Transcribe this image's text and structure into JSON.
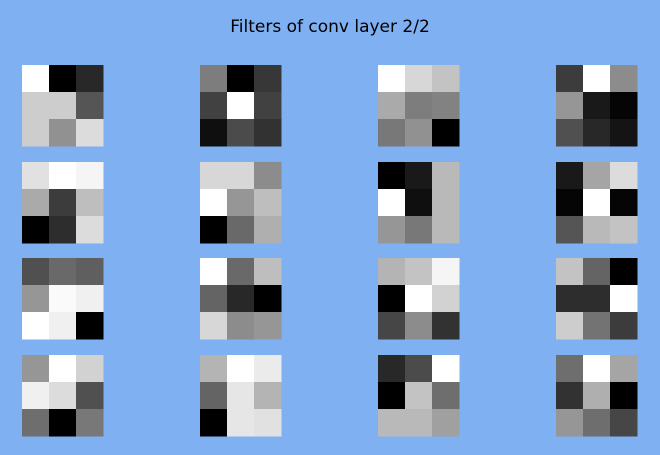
{
  "figure": {
    "background": "#7eb0f2"
  },
  "chart_data": {
    "type": "heatmap",
    "title": "Filters of conv layer 2/2",
    "colormap": "gray",
    "value_range": [
      0,
      255
    ],
    "rows": 4,
    "cols": 4,
    "filters": [
      [
        [
          255,
          0,
          40
        ],
        [
          205,
          205,
          85
        ],
        [
          205,
          145,
          220
        ]
      ],
      [
        [
          125,
          0,
          55
        ],
        [
          65,
          255,
          65
        ],
        [
          15,
          75,
          50
        ]
      ],
      [
        [
          255,
          215,
          195
        ],
        [
          170,
          125,
          130
        ],
        [
          120,
          145,
          0
        ]
      ],
      [
        [
          60,
          255,
          140
        ],
        [
          150,
          25,
          5
        ],
        [
          80,
          40,
          20
        ]
      ],
      [
        [
          225,
          255,
          245
        ],
        [
          170,
          60,
          190
        ],
        [
          0,
          45,
          220
        ]
      ],
      [
        [
          215,
          215,
          140
        ],
        [
          255,
          150,
          190
        ],
        [
          0,
          105,
          175
        ]
      ],
      [
        [
          0,
          25,
          185
        ],
        [
          255,
          15,
          185
        ],
        [
          150,
          120,
          185
        ]
      ],
      [
        [
          25,
          165,
          220
        ],
        [
          5,
          255,
          5
        ],
        [
          85,
          185,
          195
        ]
      ],
      [
        [
          80,
          105,
          95
        ],
        [
          150,
          250,
          240
        ],
        [
          255,
          240,
          0
        ]
      ],
      [
        [
          255,
          105,
          190
        ],
        [
          100,
          40,
          0
        ],
        [
          215,
          140,
          150
        ]
      ],
      [
        [
          180,
          195,
          245
        ],
        [
          0,
          255,
          210
        ],
        [
          70,
          140,
          50
        ]
      ],
      [
        [
          195,
          100,
          0
        ],
        [
          45,
          45,
          255
        ],
        [
          205,
          115,
          60
        ]
      ],
      [
        [
          150,
          255,
          210
        ],
        [
          240,
          220,
          80
        ],
        [
          110,
          0,
          120
        ]
      ],
      [
        [
          180,
          255,
          235
        ],
        [
          100,
          230,
          180
        ],
        [
          0,
          230,
          225
        ]
      ],
      [
        [
          40,
          75,
          255
        ],
        [
          0,
          195,
          110
        ],
        [
          185,
          185,
          160
        ]
      ],
      [
        [
          110,
          255,
          165
        ],
        [
          50,
          175,
          0
        ],
        [
          150,
          110,
          70
        ]
      ]
    ]
  }
}
